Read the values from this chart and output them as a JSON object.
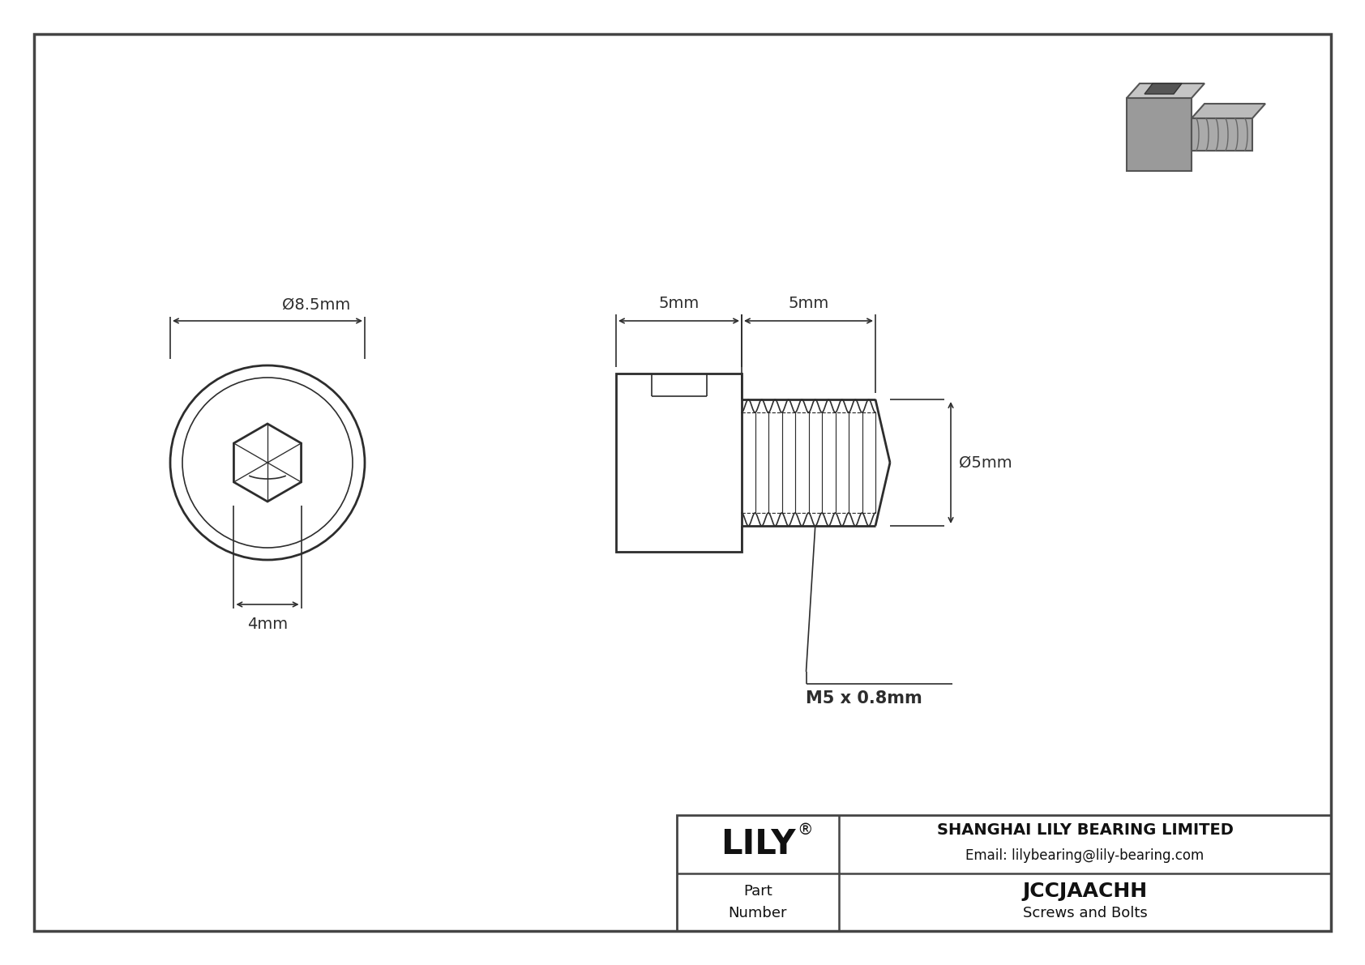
{
  "bg_color": "#ffffff",
  "drawing_bg": "#ffffff",
  "line_color": "#2d2d2d",
  "title_company": "SHANGHAI LILY BEARING LIMITED",
  "title_email": "Email: lilybearing@lily-bearing.com",
  "part_number": "JCCJAACHH",
  "part_category": "Screws and Bolts",
  "brand": "LILY",
  "diameter_label": "Ø8.5mm",
  "hex_socket_label": "4mm",
  "thread_pitch_label": "M5 x 0.8mm",
  "head_length_label": "5mm",
  "thread_length_label": "5mm",
  "thread_diam_label": "Ø5mm",
  "border_color": "#555555",
  "dim_arrow_color": "#2d2d2d"
}
